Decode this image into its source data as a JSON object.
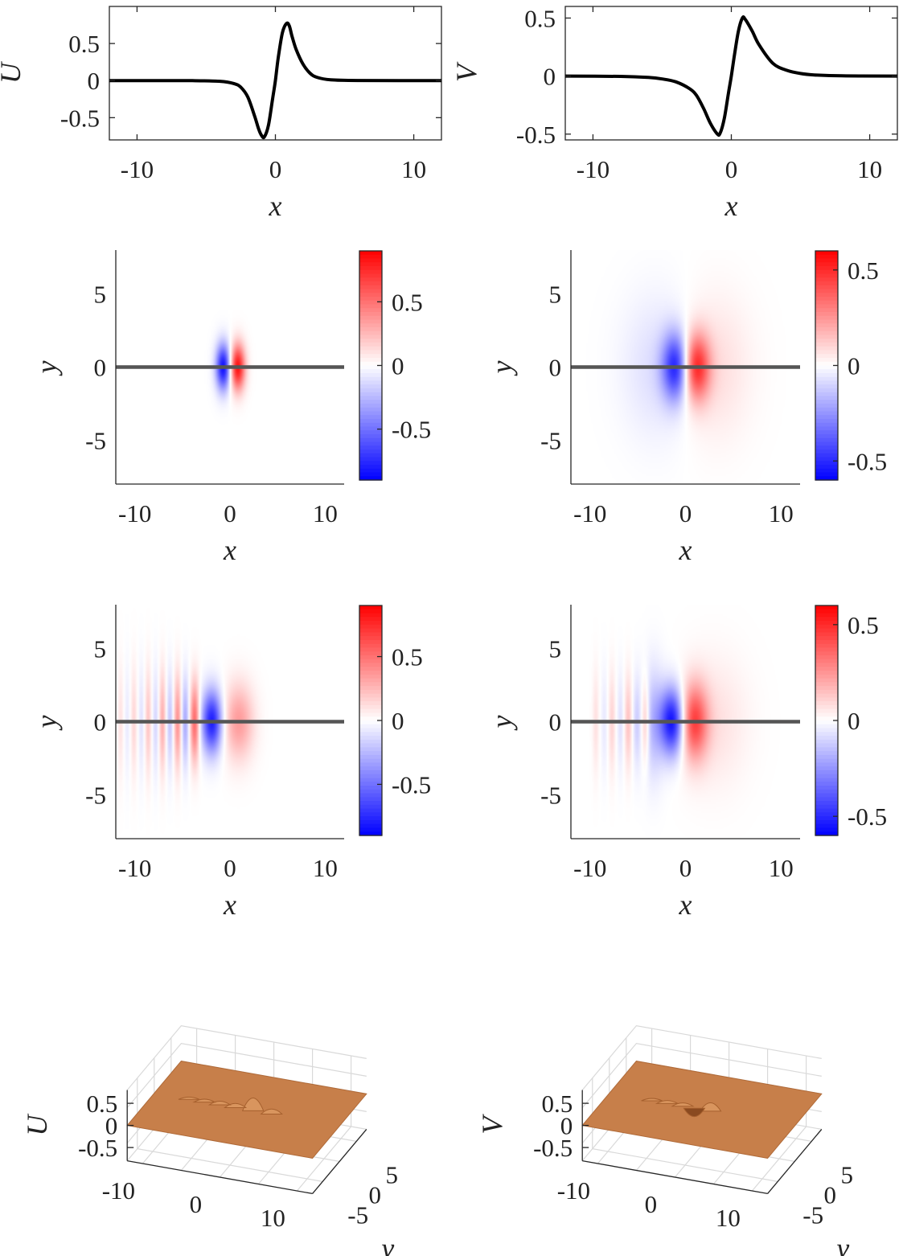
{
  "chart_data": [
    {
      "id": "profile-U",
      "type": "line",
      "xlabel": "x",
      "ylabel": "U",
      "xlim": [
        -12,
        12
      ],
      "ylim": [
        -0.8,
        1.0
      ],
      "xticks": [
        -10,
        0,
        10
      ],
      "xtick_labels": [
        "-10",
        "0",
        "10"
      ],
      "yticks": [
        -0.5,
        0,
        0.5
      ],
      "ytick_labels": [
        "-0.5",
        "0",
        "0.5"
      ],
      "x": [
        -12,
        -6,
        -4,
        -3,
        -2.5,
        -2,
        -1.5,
        -1.2,
        -1,
        -0.8,
        -0.5,
        -0.2,
        0,
        0.2,
        0.5,
        0.8,
        1,
        1.2,
        1.5,
        2,
        2.5,
        3,
        4,
        6,
        12
      ],
      "y": [
        0,
        -0.001,
        -0.01,
        -0.04,
        -0.09,
        -0.22,
        -0.48,
        -0.66,
        -0.74,
        -0.76,
        -0.6,
        -0.24,
        0,
        0.3,
        0.64,
        0.77,
        0.74,
        0.6,
        0.42,
        0.22,
        0.1,
        0.045,
        0.01,
        0.001,
        0
      ]
    },
    {
      "id": "profile-V",
      "type": "line",
      "xlabel": "x",
      "ylabel": "V",
      "xlim": [
        -12,
        12
      ],
      "ylim": [
        -0.55,
        0.6
      ],
      "xticks": [
        -10,
        0,
        10
      ],
      "xtick_labels": [
        "-10",
        "0",
        "10"
      ],
      "yticks": [
        -0.5,
        0,
        0.5
      ],
      "ytick_labels": [
        "-0.5",
        "0",
        "0.5"
      ],
      "x": [
        -12,
        -8,
        -6,
        -5,
        -4,
        -3,
        -2.5,
        -2,
        -1.5,
        -1,
        -0.8,
        -0.5,
        -0.2,
        0,
        0.2,
        0.5,
        0.8,
        1,
        1.5,
        2,
        3,
        4,
        5,
        6,
        8,
        12
      ],
      "y": [
        0,
        -0.003,
        -0.012,
        -0.025,
        -0.05,
        -0.11,
        -0.17,
        -0.28,
        -0.41,
        -0.5,
        -0.49,
        -0.36,
        -0.14,
        0,
        0.16,
        0.38,
        0.5,
        0.49,
        0.39,
        0.27,
        0.11,
        0.05,
        0.022,
        0.01,
        0.002,
        0
      ]
    },
    {
      "id": "map-U-top",
      "type": "heatmap",
      "xlabel": "x",
      "ylabel": "y",
      "xlim": [
        -12,
        12
      ],
      "ylim": [
        -8,
        8
      ],
      "xticks": [
        -10,
        0,
        10
      ],
      "xtick_labels": [
        "-10",
        "0",
        "10"
      ],
      "yticks": [
        -5,
        0,
        5
      ],
      "ytick_labels": [
        "-5",
        "0",
        "5"
      ],
      "clim": [
        -0.9,
        0.9
      ],
      "cticks": [
        -0.5,
        0,
        0.5
      ],
      "ctick_labels": [
        "-0.5",
        "0",
        "0.5"
      ],
      "colormap": [
        "#0000ff",
        "#ffffff",
        "#ff0000"
      ],
      "lobes": [
        {
          "x": -0.7,
          "y": 0,
          "sx": 0.55,
          "sy": 1.1,
          "amp": -0.85
        },
        {
          "x": 0.8,
          "y": 0,
          "sx": 0.55,
          "sy": 1.1,
          "amp": 0.85
        }
      ],
      "line_y": 0
    },
    {
      "id": "map-V-top",
      "type": "heatmap",
      "xlabel": "x",
      "ylabel": "y",
      "xlim": [
        -12,
        12
      ],
      "ylim": [
        -8,
        8
      ],
      "xticks": [
        -10,
        0,
        10
      ],
      "xtick_labels": [
        "-10",
        "0",
        "10"
      ],
      "yticks": [
        -5,
        0,
        5
      ],
      "ytick_labels": [
        "-5",
        "0",
        "5"
      ],
      "clim": [
        -0.6,
        0.6
      ],
      "cticks": [
        -0.5,
        0,
        0.5
      ],
      "ctick_labels": [
        "-0.5",
        "0",
        "0.5"
      ],
      "colormap": [
        "#0000ff",
        "#ffffff",
        "#ff0000"
      ],
      "lobes": [
        {
          "x": -1.0,
          "y": 0,
          "sx": 1.0,
          "sy": 1.6,
          "amp": -0.5
        },
        {
          "x": 1.1,
          "y": 0,
          "sx": 1.0,
          "sy": 1.6,
          "amp": 0.5
        },
        {
          "x": -2.8,
          "y": 0,
          "sx": 2.6,
          "sy": 3.3,
          "amp": -0.08
        },
        {
          "x": 3.0,
          "y": 0,
          "sx": 2.6,
          "sy": 3.3,
          "amp": 0.08
        }
      ],
      "line_y": 0
    },
    {
      "id": "map-U-bottom",
      "type": "heatmap",
      "xlabel": "x",
      "ylabel": "y",
      "xlim": [
        -12,
        12
      ],
      "ylim": [
        -8,
        8
      ],
      "xticks": [
        -10,
        0,
        10
      ],
      "xtick_labels": [
        "-10",
        "0",
        "10"
      ],
      "yticks": [
        -5,
        0,
        5
      ],
      "ytick_labels": [
        "-5",
        "0",
        "5"
      ],
      "clim": [
        -0.9,
        0.9
      ],
      "cticks": [
        -0.5,
        0,
        0.5
      ],
      "ctick_labels": [
        "-0.5",
        "0",
        "0.5"
      ],
      "colormap": [
        "#0000ff",
        "#ffffff",
        "#ff0000"
      ],
      "lobes": [
        {
          "x": -1.9,
          "y": 0,
          "sx": 0.75,
          "sy": 1.5,
          "amp": -0.8
        },
        {
          "x": 0.9,
          "y": 0,
          "sx": 1.1,
          "sy": 1.8,
          "amp": 0.35
        },
        {
          "x": -3.7,
          "y": 0,
          "sx": 0.35,
          "sy": 1.9,
          "amp": 0.55
        },
        {
          "x": -4.7,
          "y": 0,
          "sx": 0.3,
          "sy": 2.1,
          "amp": -0.3
        },
        {
          "x": -5.5,
          "y": 0,
          "sx": 0.28,
          "sy": 2.2,
          "amp": 0.38
        },
        {
          "x": -6.3,
          "y": 0,
          "sx": 0.26,
          "sy": 2.3,
          "amp": -0.2
        },
        {
          "x": -7.1,
          "y": 0,
          "sx": 0.25,
          "sy": 2.4,
          "amp": 0.28
        },
        {
          "x": -7.8,
          "y": 0,
          "sx": 0.24,
          "sy": 2.5,
          "amp": -0.14
        },
        {
          "x": -8.6,
          "y": 0,
          "sx": 0.23,
          "sy": 2.5,
          "amp": 0.2
        },
        {
          "x": -9.3,
          "y": 0,
          "sx": 0.22,
          "sy": 2.6,
          "amp": -0.1
        },
        {
          "x": -10.1,
          "y": 0,
          "sx": 0.22,
          "sy": 2.6,
          "amp": 0.14
        },
        {
          "x": -10.8,
          "y": 0,
          "sx": 0.21,
          "sy": 2.7,
          "amp": -0.07
        },
        {
          "x": -11.5,
          "y": 0,
          "sx": 0.21,
          "sy": 2.7,
          "amp": 0.1
        }
      ],
      "line_y": 0
    },
    {
      "id": "map-V-bottom",
      "type": "heatmap",
      "xlabel": "x",
      "ylabel": "y",
      "xlim": [
        -12,
        12
      ],
      "ylim": [
        -8,
        8
      ],
      "xticks": [
        -10,
        0,
        10
      ],
      "xtick_labels": [
        "-10",
        "0",
        "10"
      ],
      "yticks": [
        -5,
        0,
        5
      ],
      "ytick_labels": [
        "-5",
        "0",
        "5"
      ],
      "clim": [
        -0.6,
        0.6
      ],
      "cticks": [
        -0.5,
        0,
        0.5
      ],
      "ctick_labels": [
        "-0.5",
        "0",
        "0.5"
      ],
      "colormap": [
        "#0000ff",
        "#ffffff",
        "#ff0000"
      ],
      "lobes": [
        {
          "x": -1.4,
          "y": 0,
          "sx": 0.9,
          "sy": 1.6,
          "amp": -0.58
        },
        {
          "x": 0.9,
          "y": 0,
          "sx": 1.0,
          "sy": 1.8,
          "amp": 0.42
        },
        {
          "x": -3.4,
          "y": 0,
          "sx": 0.8,
          "sy": 2.6,
          "amp": -0.16
        },
        {
          "x": 3.0,
          "y": 0,
          "sx": 2.4,
          "sy": 3.0,
          "amp": 0.07
        },
        {
          "x": -4.2,
          "y": 0,
          "sx": 0.3,
          "sy": 2.0,
          "amp": 0.18
        },
        {
          "x": -5.1,
          "y": 0,
          "sx": 0.3,
          "sy": 2.1,
          "amp": -0.1
        },
        {
          "x": -6.0,
          "y": 0,
          "sx": 0.28,
          "sy": 2.2,
          "amp": 0.14
        },
        {
          "x": -6.8,
          "y": 0,
          "sx": 0.26,
          "sy": 2.3,
          "amp": -0.07
        },
        {
          "x": -7.7,
          "y": 0,
          "sx": 0.25,
          "sy": 2.4,
          "amp": 0.1
        },
        {
          "x": -8.5,
          "y": 0,
          "sx": 0.24,
          "sy": 2.5,
          "amp": -0.05
        },
        {
          "x": -9.4,
          "y": 0,
          "sx": 0.23,
          "sy": 2.5,
          "amp": 0.07
        }
      ],
      "line_y": 0
    },
    {
      "id": "surface-U",
      "type": "surface",
      "xlabel": "x",
      "ylabel": "y",
      "zlabel": "U",
      "xticks": [
        -10,
        0,
        10
      ],
      "xtick_labels": [
        "-10",
        "0",
        "10"
      ],
      "yticks": [
        -5,
        0,
        5
      ],
      "ytick_labels": [
        "-5",
        "0",
        "5"
      ],
      "zticks": [
        -0.5,
        0,
        0.5
      ],
      "ztick_labels": [
        "-0.5",
        "0",
        "0.5"
      ],
      "surface_color": "#c77f4a",
      "peaks": [
        {
          "x": 0.8,
          "y": 0,
          "h": 0.77
        },
        {
          "x": 3.2,
          "y": 0,
          "h": 0.3
        },
        {
          "x": -1.5,
          "y": 0,
          "h": 0.25
        },
        {
          "x": -3.5,
          "y": 0,
          "h": 0.22
        },
        {
          "x": -5.5,
          "y": 0,
          "h": 0.18
        },
        {
          "x": -7.5,
          "y": 0,
          "h": 0.14
        }
      ]
    },
    {
      "id": "surface-V",
      "type": "surface",
      "xlabel": "x",
      "ylabel": "y",
      "zlabel": "V",
      "xticks": [
        -10,
        0,
        10
      ],
      "xtick_labels": [
        "-10",
        "0",
        "10"
      ],
      "yticks": [
        -5,
        0,
        5
      ],
      "ytick_labels": [
        "-5",
        "0",
        "5"
      ],
      "zticks": [
        -0.5,
        0,
        0.5
      ],
      "ztick_labels": [
        "-0.5",
        "0",
        "0.5"
      ],
      "surface_color": "#c77f4a",
      "peaks": [
        {
          "x": 1.1,
          "y": 0,
          "h": 0.5
        },
        {
          "x": -1.0,
          "y": 0,
          "h": -0.5
        },
        {
          "x": -2.5,
          "y": 0,
          "h": 0.2
        },
        {
          "x": -4.5,
          "y": 0,
          "h": 0.18
        },
        {
          "x": -6.5,
          "y": 0,
          "h": 0.14
        }
      ]
    }
  ]
}
